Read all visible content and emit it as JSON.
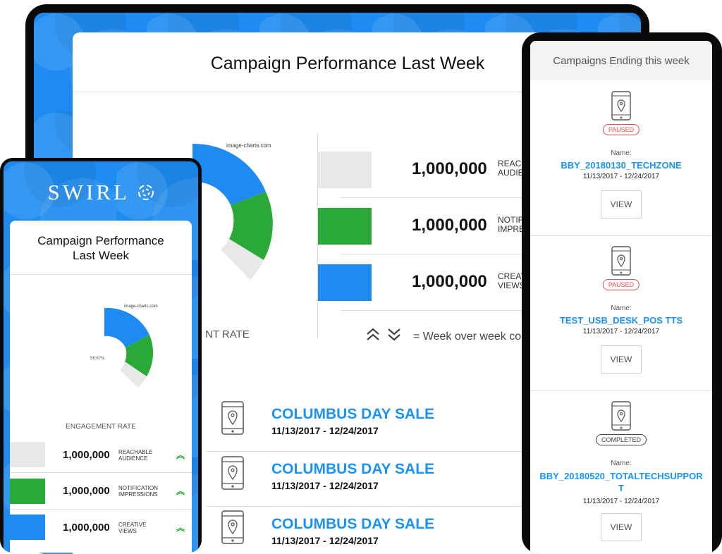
{
  "tablet": {
    "title": "Campaign Performance Last Week",
    "chart_watermark": "image-charts.com",
    "engagement_label_partial": "NT RATE",
    "stats": [
      {
        "value": "1,000,000",
        "label_line1": "REACH",
        "label_line2": "AUDIEN",
        "color": "#e8e8e8"
      },
      {
        "value": "1,000,000",
        "label_line1": "NOTIFIC",
        "label_line2": "IMPRES",
        "color": "#2aa838"
      },
      {
        "value": "1,000,000",
        "label_line1": "CREATI",
        "label_line2": "VIEWS",
        "color": "#1d8bf1"
      }
    ],
    "legend_text": "= Week over week co",
    "campaigns": [
      {
        "name": "COLUMBUS DAY SALE",
        "dates": "11/13/2017 - 12/24/2017"
      },
      {
        "name": "COLUMBUS DAY SALE",
        "dates": "11/13/2017 - 12/24/2017"
      },
      {
        "name": "COLUMBUS DAY SALE",
        "dates": "11/13/2017 - 12/24/2017"
      }
    ]
  },
  "phone_left": {
    "logo": "SWIRL",
    "title_line1": "Campaign Performance",
    "title_line2": "Last Week",
    "chart_watermark": "image-charts.com",
    "chart_percent": "56.67%",
    "engagement_label": "ENGAGEMENT RATE",
    "stats": [
      {
        "value": "1,000,000",
        "label_line1": "REACHABLE",
        "label_line2": "AUDIENCE",
        "color": "#e8e8e8"
      },
      {
        "value": "1,000,000",
        "label_line1": "NOTIFICATION",
        "label_line2": "IMPRESSIONS",
        "color": "#2aa838"
      },
      {
        "value": "1,000,000",
        "label_line1": "CREATIVE",
        "label_line2": "VIEWS",
        "color": "#1d8bf1"
      }
    ]
  },
  "phone_right": {
    "header": "Campaigns Ending this week",
    "name_label": "Name:",
    "items": [
      {
        "status": "PAUSED",
        "status_color": "#e24b4b",
        "name": "BBY_20180130_TECHZONE",
        "dates": "11/13/2017 - 12/24/2017",
        "button": "VIEW"
      },
      {
        "status": "PAUSED",
        "status_color": "#e24b4b",
        "name": "TEST_USB_DESK_POS TTS",
        "dates": "11/13/2017 - 12/24/2017",
        "button": "VIEW"
      },
      {
        "status": "COMPLETED",
        "status_color": "#444444",
        "name_line1": "BBY_20180520_TOTALTECHSUPPOR",
        "name_line2": "T",
        "dates": "11/13/2017 - 12/24/2017",
        "button": "VIEW"
      }
    ]
  },
  "colors": {
    "brand_blue": "#1d8bf1",
    "link_blue": "#1c93f3",
    "green": "#2aa838",
    "gray": "#e8e8e8"
  },
  "icons": [
    "mobile-location-icon",
    "chevron-double-up-icon",
    "chevron-double-down-icon",
    "swirl-logo-icon"
  ]
}
